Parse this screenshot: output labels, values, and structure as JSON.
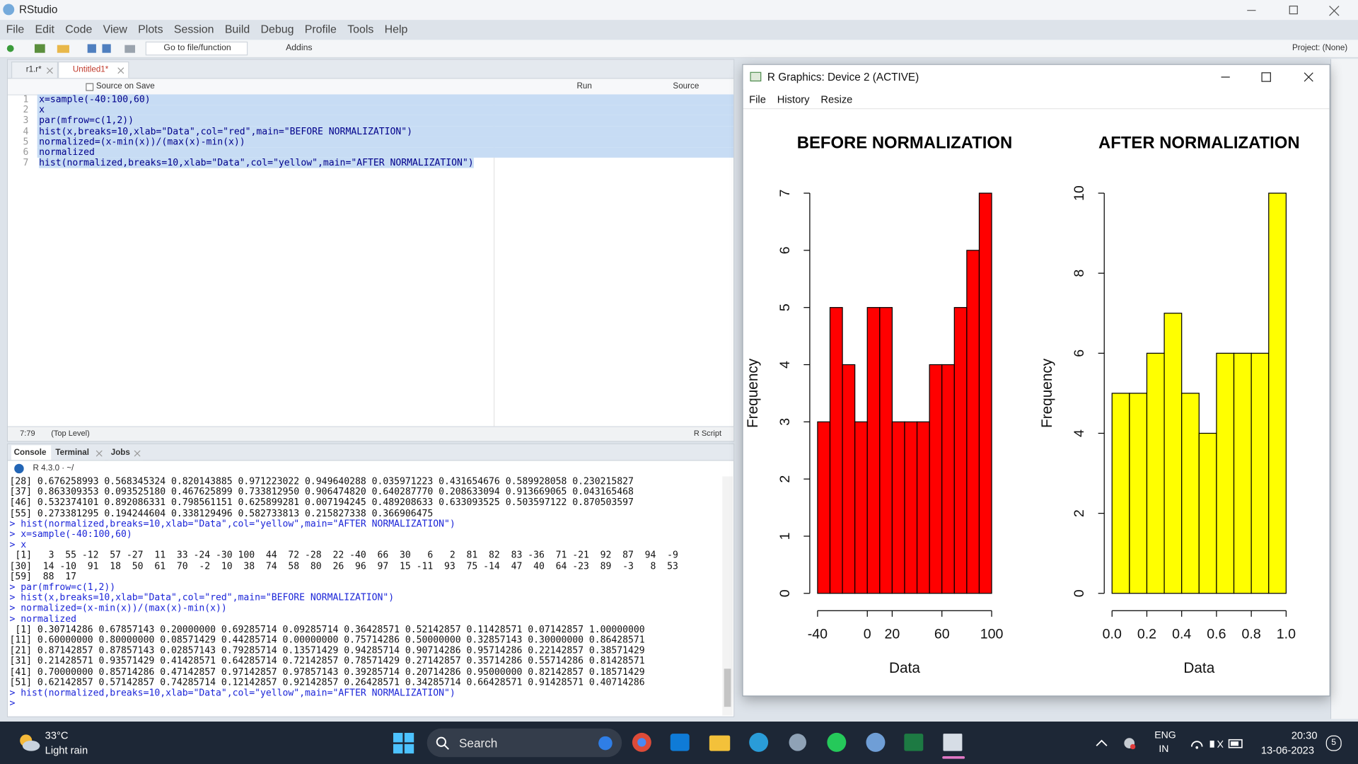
{
  "window": {
    "title": "RStudio"
  },
  "menu": [
    "File",
    "Edit",
    "Code",
    "View",
    "Plots",
    "Session",
    "Build",
    "Debug",
    "Profile",
    "Tools",
    "Help"
  ],
  "toolbar": {
    "goto": "Go to file/function",
    "addins": "Addins",
    "project": "Project: (None)"
  },
  "editor": {
    "tabs": [
      "r1.r*",
      "Untitled1*"
    ],
    "source_on_save": "Source on Save",
    "run": "Run",
    "source": "Source",
    "line_numbers": [
      1,
      2,
      3,
      4,
      5,
      6,
      7
    ],
    "lines": [
      "x=sample(-40:100,60)",
      "x",
      "par(mfrow=c(1,2))",
      "hist(x,breaks=10,xlab=\"Data\",col=\"red\",main=\"BEFORE NORMALIZATION\")",
      "normalized=(x-min(x))/(max(x)-min(x))",
      "normalized",
      "hist(normalized,breaks=10,xlab=\"Data\",col=\"yellow\",main=\"AFTER NORMALIZATION\")"
    ],
    "status": {
      "position": "7:79",
      "scope": "(Top Level)",
      "filetype": "R Script"
    }
  },
  "console": {
    "tabs": [
      "Console",
      "Terminal",
      "Jobs"
    ],
    "version": "R 4.3.0 · ~/",
    "lines": [
      "[28] 0.676258993 0.568345324 0.820143885 0.971223022 0.949640288 0.035971223 0.431654676 0.589928058 0.230215827",
      "[37] 0.863309353 0.093525180 0.467625899 0.733812950 0.906474820 0.640287770 0.208633094 0.913669065 0.043165468",
      "[46] 0.532374101 0.892086331 0.798561151 0.625899281 0.007194245 0.489208633 0.633093525 0.503597122 0.870503597",
      "[55] 0.273381295 0.194244604 0.338129496 0.582733813 0.215827338 0.366906475",
      "> hist(normalized,breaks=10,xlab=\"Data\",col=\"yellow\",main=\"AFTER NORMALIZATION\")",
      "> x=sample(-40:100,60)",
      "> x",
      " [1]   3  55 -12  57 -27  11  33 -24 -30 100  44  72 -28  22 -40  66  30   6   2  81  82  83 -36  71 -21  92  87  94  -9",
      "[30]  14 -10  91  18  50  61  70  -2  10  38  74  58  80  26  96  97  15 -11  93  75 -14  47  40  64 -23  89  -3   8  53",
      "[59]  88  17",
      "> par(mfrow=c(1,2))",
      "> hist(x,breaks=10,xlab=\"Data\",col=\"red\",main=\"BEFORE NORMALIZATION\")",
      "> normalized=(x-min(x))/(max(x)-min(x))",
      "> normalized",
      " [1] 0.30714286 0.67857143 0.20000000 0.69285714 0.09285714 0.36428571 0.52142857 0.11428571 0.07142857 1.00000000",
      "[11] 0.60000000 0.80000000 0.08571429 0.44285714 0.00000000 0.75714286 0.50000000 0.32857143 0.30000000 0.86428571",
      "[21] 0.87142857 0.87857143 0.02857143 0.79285714 0.13571429 0.94285714 0.90714286 0.95714286 0.22142857 0.38571429",
      "[31] 0.21428571 0.93571429 0.41428571 0.64285714 0.72142857 0.78571429 0.27142857 0.35714286 0.55714286 0.81428571",
      "[41] 0.70000000 0.85714286 0.47142857 0.97142857 0.97857143 0.39285714 0.20714286 0.95000000 0.82142857 0.18571429",
      "[51] 0.62142857 0.57142857 0.74285714 0.12142857 0.92142857 0.26428571 0.34285714 0.66428571 0.91428571 0.40714286",
      "> hist(normalized,breaks=10,xlab=\"Data\",col=\"yellow\",main=\"AFTER NORMALIZATION\")",
      ">"
    ]
  },
  "graphics": {
    "title": "R Graphics: Device 2 (ACTIVE)",
    "menu": [
      "File",
      "History",
      "Resize"
    ]
  },
  "chart_data": [
    {
      "type": "histogram",
      "title": "BEFORE NORMALIZATION",
      "xlabel": "Data",
      "ylabel": "Frequency",
      "bins": [
        -40,
        -30,
        -20,
        -10,
        0,
        10,
        20,
        30,
        40,
        50,
        60,
        70,
        80,
        90,
        100
      ],
      "values": [
        3,
        5,
        4,
        3,
        5,
        5,
        3,
        3,
        3,
        4,
        4,
        5,
        6,
        7
      ],
      "color": "#ff0000",
      "xlim": [
        -40,
        100
      ],
      "ylim": [
        0,
        7
      ],
      "xticks": [
        -40,
        0,
        20,
        60,
        100
      ],
      "yticks": [
        0,
        1,
        2,
        3,
        4,
        5,
        6,
        7
      ]
    },
    {
      "type": "histogram",
      "title": "AFTER NORMALIZATION",
      "xlabel": "Data",
      "ylabel": "Frequency",
      "bins": [
        0,
        0.1,
        0.2,
        0.3,
        0.4,
        0.5,
        0.6,
        0.7,
        0.8,
        0.9,
        1.0
      ],
      "values": [
        5,
        5,
        6,
        7,
        5,
        4,
        6,
        6,
        6,
        10
      ],
      "color": "#ffff00",
      "xlim": [
        0,
        1
      ],
      "ylim": [
        0,
        10
      ],
      "xticks": [
        {
          "value": 0,
          "label": "0.0"
        },
        0.2,
        0.4,
        0.6,
        0.8,
        {
          "value": 1,
          "label": "1.0"
        }
      ],
      "yticks": [
        0,
        2,
        4,
        6,
        8,
        10
      ]
    }
  ],
  "taskbar": {
    "temperature": "33°C",
    "weather": "Light rain",
    "search": "Search",
    "language": "ENG",
    "region": "IN",
    "time": "20:30",
    "date": "13-06-2023",
    "notifications": 5
  }
}
